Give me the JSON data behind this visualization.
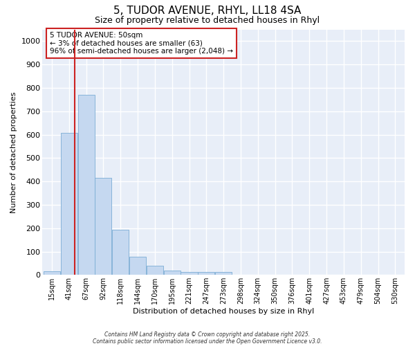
{
  "title": "5, TUDOR AVENUE, RHYL, LL18 4SA",
  "subtitle": "Size of property relative to detached houses in Rhyl",
  "xlabel": "Distribution of detached houses by size in Rhyl",
  "ylabel": "Number of detached properties",
  "bins": [
    "15sqm",
    "41sqm",
    "67sqm",
    "92sqm",
    "118sqm",
    "144sqm",
    "170sqm",
    "195sqm",
    "221sqm",
    "247sqm",
    "273sqm",
    "298sqm",
    "324sqm",
    "350sqm",
    "376sqm",
    "401sqm",
    "427sqm",
    "453sqm",
    "479sqm",
    "504sqm",
    "530sqm"
  ],
  "values": [
    15,
    607,
    770,
    415,
    193,
    78,
    40,
    20,
    14,
    13,
    12,
    0,
    0,
    0,
    0,
    0,
    0,
    0,
    0,
    0,
    0
  ],
  "bar_color": "#c5d8f0",
  "bar_edge_color": "#7aadd4",
  "vline_color": "#cc2222",
  "annotation_text": "5 TUDOR AVENUE: 50sqm\n← 3% of detached houses are smaller (63)\n96% of semi-detached houses are larger (2,048) →",
  "annotation_box_color": "#ffffff",
  "annotation_box_edge": "#cc2222",
  "ylim": [
    0,
    1050
  ],
  "background_color": "#ffffff",
  "plot_bg_color": "#e8eef8",
  "grid_color": "#ffffff",
  "title_fontsize": 11,
  "subtitle_fontsize": 9,
  "footer1": "Contains HM Land Registry data © Crown copyright and database right 2025.",
  "footer2": "Contains public sector information licensed under the Open Government Licence v3.0."
}
